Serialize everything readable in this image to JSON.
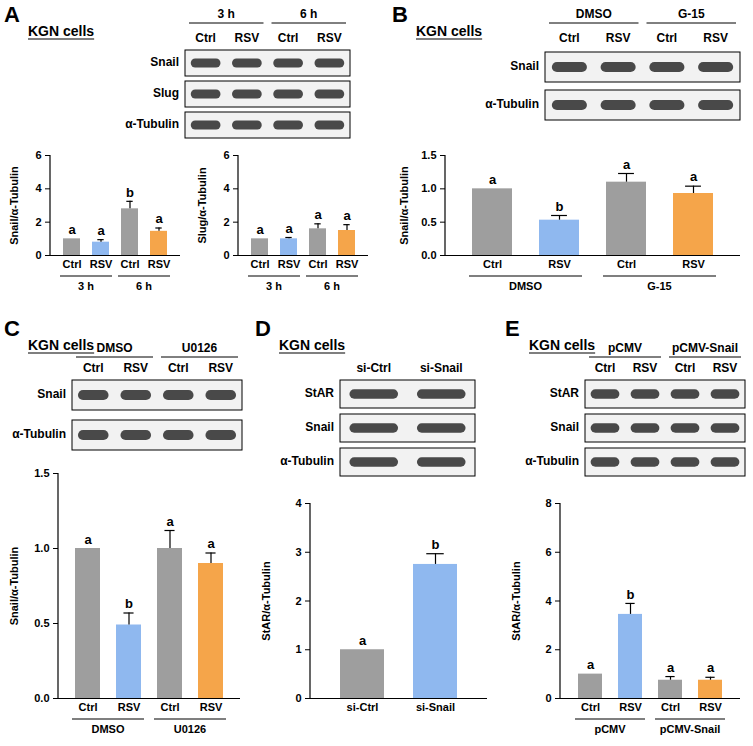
{
  "panels": [
    {
      "label": "A",
      "title": "KGN cells",
      "groups": [
        "3 h",
        "6 h"
      ],
      "lanes": [
        "Ctrl",
        "RSV",
        "Ctrl",
        "RSV"
      ],
      "rows": [
        "Snail",
        "Slug",
        "α-Tubulin"
      ]
    },
    {
      "label": "B",
      "title": "KGN cells",
      "groups": [
        "DMSO",
        "G-15"
      ],
      "lanes": [
        "Ctrl",
        "RSV",
        "Ctrl",
        "RSV"
      ],
      "rows": [
        "Snail",
        "α-Tubulin"
      ]
    },
    {
      "label": "C",
      "title": "KGN cells",
      "groups": [
        "DMSO",
        "U0126"
      ],
      "lanes": [
        "Ctrl",
        "RSV",
        "Ctrl",
        "RSV"
      ],
      "rows": [
        "Snail",
        "α-Tubulin"
      ]
    },
    {
      "label": "D",
      "title": "KGN cells",
      "lanes": [
        "si-Ctrl",
        "si-Snail"
      ],
      "rows": [
        "StAR",
        "Snail",
        "α-Tubulin"
      ]
    },
    {
      "label": "E",
      "title": "KGN cells",
      "groups": [
        "pCMV",
        "pCMV-Snail"
      ],
      "lanes": [
        "Ctrl",
        "RSV",
        "Ctrl",
        "RSV"
      ],
      "rows": [
        "StAR",
        "Snail",
        "α-Tubulin"
      ]
    }
  ],
  "chart_data": [
    {
      "panel": "A",
      "type": "bar",
      "y_label": "Snail/α-Tubulin",
      "categories": [
        "Ctrl",
        "RSV",
        "Ctrl",
        "RSV"
      ],
      "groups": [
        "3 h",
        "6 h"
      ],
      "values": [
        1.0,
        0.8,
        2.8,
        1.45
      ],
      "errors": [
        0,
        0.15,
        0.45,
        0.2
      ],
      "letters": [
        "a",
        "a",
        "b",
        "a"
      ],
      "colors": [
        "#9e9e9e",
        "#8fb8ef",
        "#9e9e9e",
        "#f5a54a"
      ],
      "ylim": [
        0,
        6
      ],
      "yticks": [
        0,
        2,
        4,
        6
      ]
    },
    {
      "panel": "A",
      "type": "bar",
      "y_label": "Slug/α-Tubulin",
      "categories": [
        "Ctrl",
        "RSV",
        "Ctrl",
        "RSV"
      ],
      "groups": [
        "3 h",
        "6 h"
      ],
      "values": [
        1.0,
        1.0,
        1.6,
        1.5
      ],
      "errors": [
        0,
        0.08,
        0.3,
        0.35
      ],
      "letters": [
        "a",
        "a",
        "a",
        "a"
      ],
      "colors": [
        "#9e9e9e",
        "#8fb8ef",
        "#9e9e9e",
        "#f5a54a"
      ],
      "ylim": [
        0,
        6
      ],
      "yticks": [
        0,
        2,
        4,
        6
      ]
    },
    {
      "panel": "B",
      "type": "bar",
      "y_label": "Snail/α-Tubulin",
      "categories": [
        "Ctrl",
        "RSV",
        "Ctrl",
        "RSV"
      ],
      "groups": [
        "DMSO",
        "G-15"
      ],
      "values": [
        1.0,
        0.53,
        1.1,
        0.93
      ],
      "errors": [
        0,
        0.07,
        0.13,
        0.11
      ],
      "letters": [
        "a",
        "b",
        "a",
        "a"
      ],
      "colors": [
        "#9e9e9e",
        "#8fb8ef",
        "#9e9e9e",
        "#f5a54a"
      ],
      "ylim": [
        0,
        1.5
      ],
      "yticks": [
        {
          "value": 0,
          "label": "0.0"
        },
        0.5,
        {
          "value": 1,
          "label": "1.0"
        },
        1.5
      ]
    },
    {
      "panel": "C",
      "type": "bar",
      "y_label": "Snail/α-Tubulin",
      "categories": [
        "Ctrl",
        "RSV",
        "Ctrl",
        "RSV"
      ],
      "groups": [
        "DMSO",
        "U0126"
      ],
      "values": [
        1.0,
        0.49,
        1.0,
        0.9
      ],
      "errors": [
        0,
        0.08,
        0.12,
        0.07
      ],
      "letters": [
        "a",
        "b",
        "a",
        "a"
      ],
      "colors": [
        "#9e9e9e",
        "#8fb8ef",
        "#9e9e9e",
        "#f5a54a"
      ],
      "ylim": [
        0,
        1.5
      ],
      "yticks": [
        {
          "value": 0,
          "label": "0.0"
        },
        0.5,
        {
          "value": 1,
          "label": "1.0"
        },
        1.5
      ]
    },
    {
      "panel": "D",
      "type": "bar",
      "y_label": "StAR/α-Tubulin",
      "categories": [
        "si-Ctrl",
        "si-Snail"
      ],
      "values": [
        1.0,
        2.75
      ],
      "errors": [
        0,
        0.22
      ],
      "letters": [
        "a",
        "b"
      ],
      "colors": [
        "#9e9e9e",
        "#8fb8ef"
      ],
      "ylim": [
        0,
        4
      ],
      "yticks": [
        0,
        1,
        2,
        3,
        4
      ]
    },
    {
      "panel": "E",
      "type": "bar",
      "y_label": "StAR/α-Tubulin",
      "categories": [
        "Ctrl",
        "RSV",
        "Ctrl",
        "RSV"
      ],
      "groups": [
        "pCMV",
        "pCMV-Snail"
      ],
      "values": [
        1.0,
        3.45,
        0.75,
        0.75
      ],
      "errors": [
        0,
        0.45,
        0.15,
        0.12
      ],
      "letters": [
        "a",
        "b",
        "a",
        "a"
      ],
      "colors": [
        "#9e9e9e",
        "#8fb8ef",
        "#9e9e9e",
        "#f5a54a"
      ],
      "ylim": [
        0,
        8
      ],
      "yticks": [
        0,
        2,
        4,
        6,
        8
      ]
    }
  ]
}
